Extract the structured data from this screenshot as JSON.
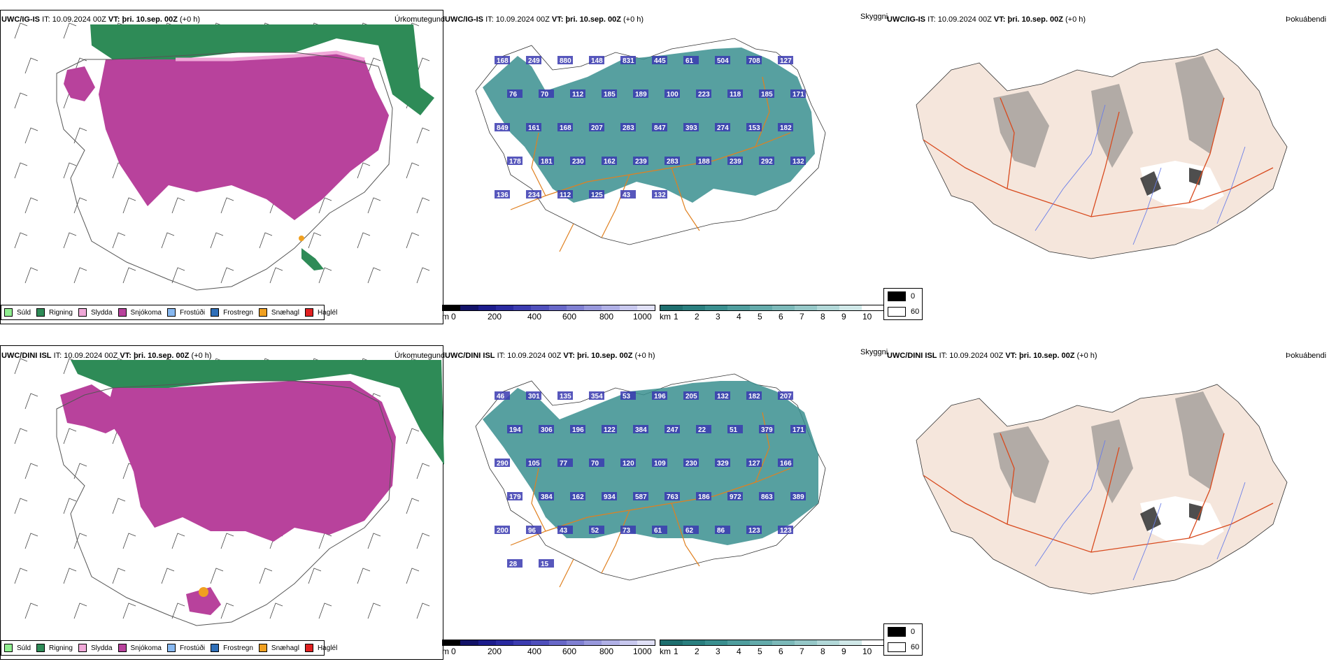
{
  "rows": [
    {
      "model": "UWC/IG-IS",
      "it_label": "IT:",
      "it_value": "10.09.2024 00Z",
      "vt_label": "VT:",
      "vt_value": "þri. 10.sep. 00Z",
      "offset": "(+0 h)"
    },
    {
      "model": "UWC/DINI ISL",
      "it_label": "IT:",
      "it_value": "10.09.2024 00Z",
      "vt_label": "VT:",
      "vt_value": "þri. 10.sep. 00Z",
      "offset": "(+0 h)"
    }
  ],
  "panels": {
    "precip": "Úrkomutegund",
    "cloud": "Skyggni",
    "fog": "Þokuábendi"
  },
  "precip_legend": [
    {
      "label": "Súld",
      "color": "#90ee90"
    },
    {
      "label": "Rigning",
      "color": "#2e8b57"
    },
    {
      "label": "Slydda",
      "color": "#f0a8d8"
    },
    {
      "label": "Snjókoma",
      "color": "#b8429c"
    },
    {
      "label": "Frostúði",
      "color": "#87b8f0"
    },
    {
      "label": "Frostregn",
      "color": "#2f6fb8"
    },
    {
      "label": "Snæhagl",
      "color": "#f0a020"
    },
    {
      "label": "Haglél",
      "color": "#e02020"
    }
  ],
  "cloudbase_bar": {
    "unit": "m",
    "ticks": [
      "0",
      "200",
      "400",
      "600",
      "800",
      "1000"
    ],
    "colors": [
      "#000000",
      "#121268",
      "#1c1c8c",
      "#2a2aa0",
      "#3c3cb0",
      "#5050bc",
      "#6868c8",
      "#8080d2",
      "#9898dc",
      "#b0b0e6",
      "#c8c8ee",
      "#e0e0f6"
    ]
  },
  "visibility_bar": {
    "unit": "km",
    "ticks": [
      "1",
      "2",
      "3",
      "4",
      "5",
      "6",
      "7",
      "8",
      "9",
      "10"
    ],
    "colors": [
      "#1f6f6f",
      "#2a7f7f",
      "#3a8f8f",
      "#4f9e9e",
      "#64abab",
      "#7cb9b9",
      "#96c8c8",
      "#b2d8d8",
      "#d0e8e8",
      "#ffffff"
    ]
  },
  "fog_legend": {
    "top": "0",
    "bottom": "60"
  },
  "cloud_labels_top": [
    "168",
    "249",
    "880",
    "148",
    "831",
    "445",
    "61",
    "504",
    "708",
    "127",
    "76",
    "70",
    "112",
    "185",
    "189",
    "100",
    "223",
    "118",
    "185",
    "171",
    "849",
    "161",
    "168",
    "207",
    "283",
    "847",
    "393",
    "274",
    "153",
    "182",
    "178",
    "181",
    "230",
    "162",
    "239",
    "283",
    "188",
    "239",
    "292",
    "132",
    "136",
    "234",
    "112",
    "125",
    "43",
    "132"
  ],
  "cloud_labels_bottom": [
    "46",
    "301",
    "135",
    "354",
    "53",
    "196",
    "205",
    "132",
    "182",
    "207",
    "194",
    "306",
    "196",
    "122",
    "384",
    "247",
    "22",
    "51",
    "379",
    "171",
    "290",
    "105",
    "77",
    "70",
    "120",
    "109",
    "230",
    "329",
    "127",
    "166",
    "179",
    "384",
    "162",
    "934",
    "587",
    "763",
    "186",
    "972",
    "863",
    "389",
    "200",
    "96",
    "43",
    "52",
    "73",
    "61",
    "62",
    "86",
    "123",
    "123",
    "28",
    "15"
  ]
}
